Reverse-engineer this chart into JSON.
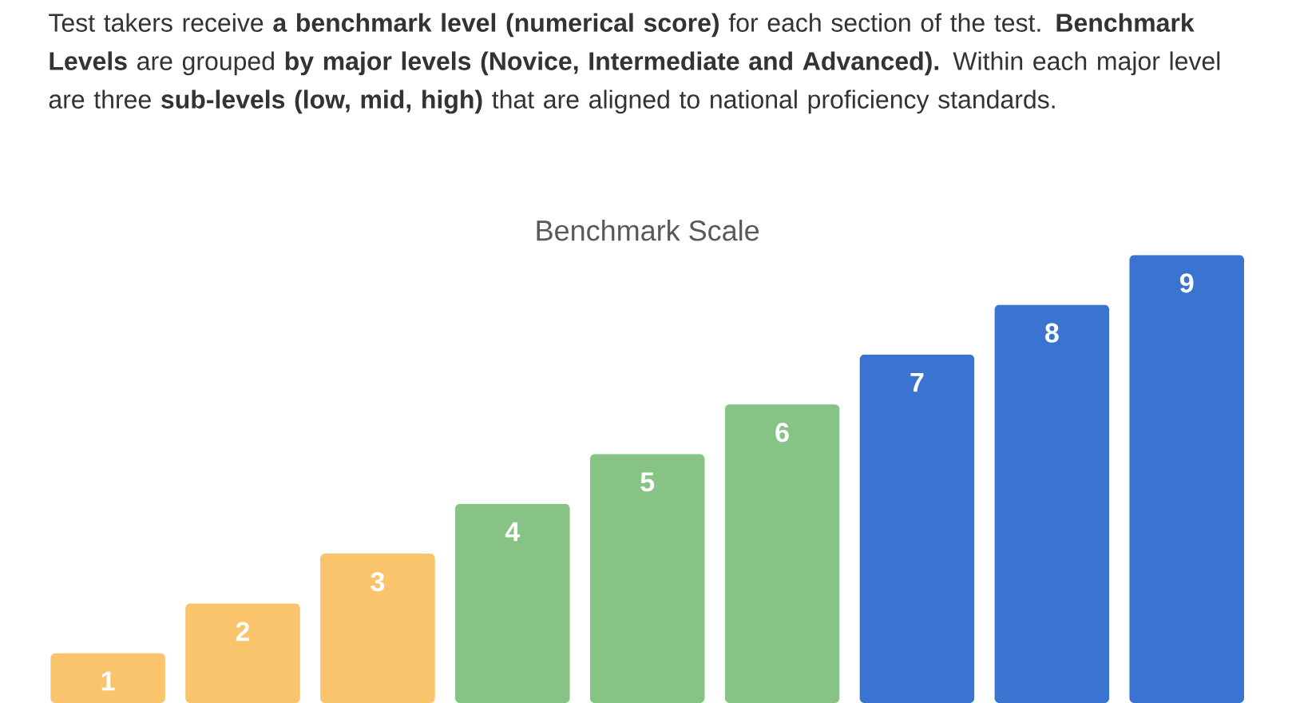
{
  "chart_data": {
    "type": "bar",
    "title": "Benchmark Scale",
    "annotations": [
      "Test takers receive **a benchmark level (numerical score)** for each section of the test. **Benchmark Levels** are grouped **by major levels (Novice, Intermediate and Advanced).** Within each major level are three **sub-levels (low, mid, high)** that are aligned to national proficiency standards."
    ],
    "categories": [
      null,
      null,
      null,
      null,
      null,
      null,
      null,
      null,
      null
    ],
    "values": [
      1,
      2,
      3,
      4,
      5,
      6,
      7,
      8,
      9
    ],
    "colors": [
      "#f9c46b",
      "#f9c46b",
      "#f9c46b",
      "#87c384",
      "#87c384",
      "#87c384",
      "#3b73d1",
      "#3b73d1",
      "#3b73d1"
    ],
    "data_labels": true
  }
}
